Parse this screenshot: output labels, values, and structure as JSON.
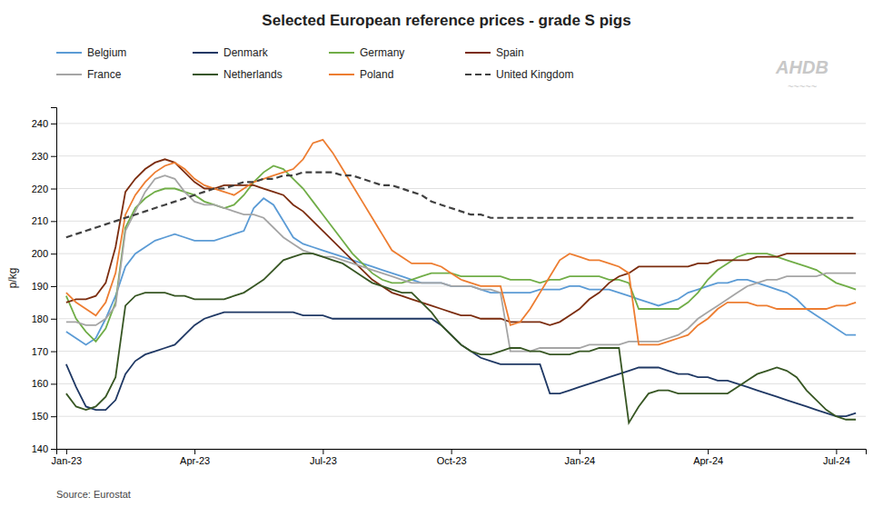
{
  "chart_data": {
    "type": "line",
    "title": "Selected European reference prices - grade S pigs",
    "y_label": "p/kg",
    "source": "Source: Eurostat",
    "annotations": [
      "AHDB",
      "~~~~~"
    ],
    "categories": [
      "Jan-23",
      null,
      null,
      null,
      null,
      null,
      null,
      null,
      null,
      null,
      null,
      null,
      null,
      "Apr-23",
      null,
      null,
      null,
      null,
      null,
      null,
      null,
      null,
      null,
      null,
      null,
      null,
      "Jul-23",
      null,
      null,
      null,
      null,
      null,
      null,
      null,
      null,
      null,
      null,
      null,
      null,
      "Oct-23",
      null,
      null,
      null,
      null,
      null,
      null,
      null,
      null,
      null,
      null,
      null,
      null,
      "Jan-24",
      null,
      null,
      null,
      null,
      null,
      null,
      null,
      null,
      null,
      null,
      null,
      null,
      "Apr-24",
      null,
      null,
      null,
      null,
      null,
      null,
      null,
      null,
      null,
      null,
      null,
      null,
      "Jul-24",
      null,
      null
    ],
    "ylim": [
      140,
      245
    ],
    "yticks": [
      140,
      150,
      160,
      170,
      180,
      190,
      200,
      210,
      220,
      230,
      240
    ],
    "grid": true,
    "legend": "top",
    "series": [
      {
        "name": "Belgium",
        "color": "#5B9BD5",
        "line_style": "solid",
        "values": [
          176,
          174,
          172,
          174,
          180,
          187,
          196,
          200,
          202,
          204,
          205,
          206,
          205,
          204,
          204,
          204,
          205,
          206,
          207,
          214,
          217,
          215,
          210,
          205,
          203,
          202,
          201,
          200,
          199,
          198,
          197,
          196,
          195,
          194,
          193,
          192,
          191,
          191,
          191,
          190,
          190,
          190,
          189,
          188,
          188,
          188,
          188,
          188,
          189,
          189,
          189,
          190,
          190,
          189,
          189,
          189,
          188,
          187,
          186,
          185,
          184,
          185,
          186,
          188,
          189,
          190,
          191,
          191,
          192,
          192,
          191,
          190,
          189,
          188,
          186,
          183,
          181,
          179,
          177,
          175,
          175
        ]
      },
      {
        "name": "Denmark",
        "color": "#1F3864",
        "line_style": "solid",
        "values": [
          166,
          159,
          153,
          152,
          152,
          155,
          163,
          167,
          169,
          170,
          171,
          172,
          175,
          178,
          180,
          181,
          182,
          182,
          182,
          182,
          182,
          182,
          182,
          182,
          181,
          181,
          181,
          180,
          180,
          180,
          180,
          180,
          180,
          180,
          180,
          180,
          180,
          180,
          178,
          175,
          172,
          170,
          168,
          167,
          166,
          166,
          166,
          166,
          166,
          157,
          157,
          158,
          159,
          160,
          161,
          162,
          163,
          164,
          165,
          165,
          165,
          164,
          163,
          163,
          162,
          162,
          161,
          161,
          160,
          159,
          158,
          157,
          156,
          155,
          154,
          153,
          152,
          151,
          150,
          150,
          151
        ]
      },
      {
        "name": "Germany",
        "color": "#70AD47",
        "line_style": "solid",
        "values": [
          187,
          180,
          176,
          173,
          177,
          185,
          208,
          214,
          217,
          219,
          220,
          220,
          219,
          218,
          216,
          215,
          214,
          215,
          218,
          222,
          225,
          227,
          226,
          223,
          220,
          216,
          212,
          208,
          204,
          200,
          197,
          194,
          192,
          191,
          191,
          192,
          193,
          194,
          194,
          194,
          193,
          193,
          193,
          193,
          193,
          192,
          192,
          192,
          191,
          192,
          192,
          193,
          193,
          193,
          193,
          192,
          192,
          191,
          183,
          183,
          183,
          183,
          183,
          185,
          188,
          192,
          195,
          197,
          199,
          200,
          200,
          200,
          199,
          198,
          197,
          196,
          195,
          193,
          191,
          190,
          189
        ]
      },
      {
        "name": "Spain",
        "color": "#7B2C0E",
        "line_style": "solid",
        "values": [
          185,
          186,
          186,
          187,
          191,
          202,
          219,
          223,
          226,
          228,
          229,
          228,
          225,
          222,
          220,
          220,
          221,
          221,
          221,
          221,
          220,
          219,
          218,
          215,
          213,
          210,
          207,
          204,
          201,
          198,
          195,
          192,
          190,
          188,
          187,
          186,
          185,
          184,
          183,
          182,
          181,
          181,
          180,
          180,
          180,
          179,
          179,
          179,
          179,
          178,
          179,
          181,
          183,
          186,
          188,
          191,
          193,
          194,
          196,
          196,
          196,
          196,
          196,
          196,
          197,
          197,
          198,
          198,
          198,
          198,
          199,
          199,
          199,
          200,
          200,
          200,
          200,
          200,
          200,
          200,
          200
        ]
      },
      {
        "name": "France",
        "color": "#A5A5A5",
        "line_style": "solid",
        "values": [
          179,
          179,
          178,
          178,
          180,
          184,
          207,
          213,
          219,
          223,
          224,
          223,
          219,
          216,
          215,
          215,
          214,
          213,
          212,
          212,
          211,
          208,
          205,
          203,
          201,
          200,
          199,
          199,
          198,
          197,
          196,
          195,
          194,
          193,
          192,
          191,
          191,
          191,
          191,
          190,
          190,
          190,
          189,
          189,
          188,
          170,
          170,
          170,
          171,
          171,
          171,
          171,
          171,
          172,
          172,
          172,
          172,
          173,
          173,
          173,
          173,
          174,
          175,
          177,
          180,
          182,
          184,
          186,
          188,
          190,
          191,
          192,
          192,
          193,
          193,
          193,
          193,
          194,
          194,
          194,
          194
        ]
      },
      {
        "name": "Netherlands",
        "color": "#375623",
        "line_style": "solid",
        "values": [
          157,
          153,
          152,
          153,
          156,
          162,
          184,
          187,
          188,
          188,
          188,
          187,
          187,
          186,
          186,
          186,
          186,
          187,
          188,
          190,
          192,
          195,
          198,
          199,
          200,
          200,
          199,
          198,
          197,
          195,
          193,
          191,
          190,
          189,
          188,
          188,
          185,
          182,
          178,
          175,
          172,
          170,
          169,
          169,
          170,
          171,
          171,
          170,
          170,
          169,
          169,
          169,
          170,
          170,
          171,
          171,
          171,
          148,
          153,
          157,
          158,
          158,
          157,
          157,
          157,
          157,
          157,
          157,
          159,
          161,
          163,
          164,
          165,
          164,
          162,
          158,
          155,
          152,
          150,
          149,
          149
        ]
      },
      {
        "name": "Poland",
        "color": "#ED7D31",
        "line_style": "solid",
        "values": [
          188,
          185,
          183,
          181,
          185,
          194,
          212,
          218,
          222,
          225,
          227,
          228,
          226,
          223,
          221,
          220,
          219,
          218,
          220,
          222,
          223,
          224,
          225,
          226,
          229,
          234,
          235,
          231,
          226,
          221,
          216,
          211,
          206,
          201,
          199,
          197,
          197,
          197,
          196,
          194,
          192,
          191,
          190,
          190,
          190,
          178,
          179,
          183,
          188,
          193,
          198,
          200,
          199,
          198,
          198,
          197,
          196,
          194,
          172,
          172,
          172,
          173,
          174,
          175,
          178,
          180,
          183,
          185,
          185,
          185,
          184,
          184,
          183,
          183,
          183,
          183,
          183,
          183,
          184,
          184,
          185
        ]
      },
      {
        "name": "United Kingdom",
        "color": "#404040",
        "line_style": "dashed",
        "values": [
          205,
          206,
          207,
          208,
          209,
          210,
          211,
          212,
          213,
          214,
          215,
          216,
          217,
          218,
          219,
          220,
          220,
          221,
          222,
          222,
          223,
          223,
          224,
          224,
          225,
          225,
          225,
          225,
          224,
          224,
          223,
          222,
          221,
          221,
          220,
          219,
          218,
          216,
          215,
          214,
          213,
          212,
          212,
          211,
          211,
          211,
          211,
          211,
          211,
          211,
          211,
          211,
          211,
          211,
          211,
          211,
          211,
          211,
          211,
          211,
          211,
          211,
          211,
          211,
          211,
          211,
          211,
          211,
          211,
          211,
          211,
          211,
          211,
          211,
          211,
          211,
          211,
          211,
          211,
          211,
          211
        ]
      }
    ]
  }
}
